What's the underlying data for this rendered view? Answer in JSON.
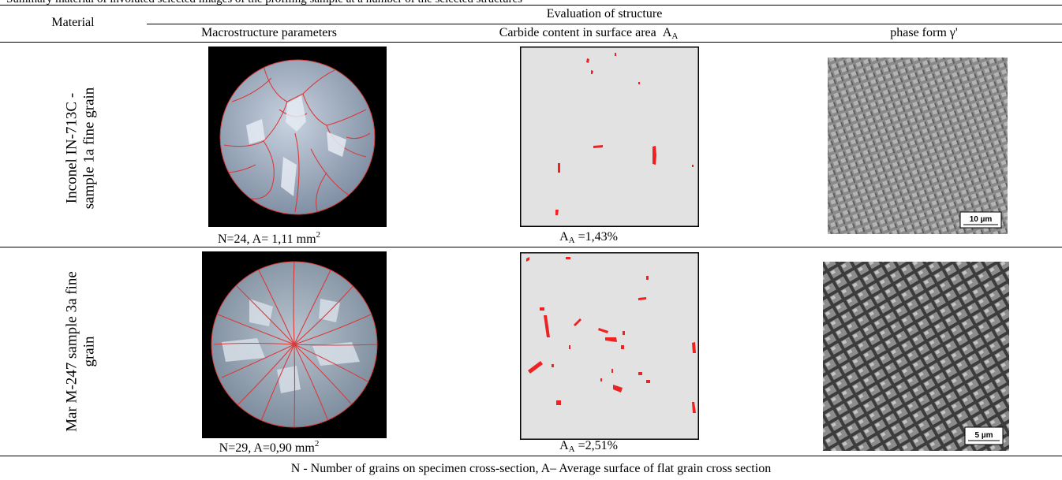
{
  "caption": "Summary material of involuted selected images of the profiling sample at a number of the selected structures",
  "header": {
    "material": "Material",
    "evaluation": "Evaluation of structure",
    "macro": "Macrostructure parameters",
    "carbide": "Carbide content in surface area",
    "carbide_symbol": "A",
    "carbide_symbol_sub": "A",
    "phase": "phase form γ'"
  },
  "rows": [
    {
      "material_line1": "Inconel IN-713C -",
      "material_line2": "sample 1a fine grain",
      "macro_caption": "N=24, A= 1,11 mm",
      "macro_sup": "2",
      "carbide_caption_prefix": "A",
      "carbide_caption_sub": "A",
      "carbide_caption_value": " =1,43%",
      "grain_count": 24,
      "grain_area_mm2": 1.11,
      "carbide_area_percent": 1.43,
      "scale_bar": "10 µm"
    },
    {
      "material_line1": "Mar M-247 sample 3a fine",
      "material_line2": "grain",
      "macro_caption": "N=29, A=0,90 mm",
      "macro_sup": "2",
      "carbide_caption_prefix": "A",
      "carbide_caption_sub": "A",
      "carbide_caption_value": " =2,51%",
      "grain_count": 29,
      "grain_area_mm2": 0.9,
      "carbide_area_percent": 2.51,
      "scale_bar": "5 µm"
    }
  ],
  "footnote": "N - Number of grains on specimen cross-section, A– Average surface of flat grain cross section",
  "colors": {
    "grain_boundary": "#d93a3a",
    "carbide": "#ee2222",
    "carbide_background": "#e2e2e2",
    "macro_background": "#000000"
  }
}
